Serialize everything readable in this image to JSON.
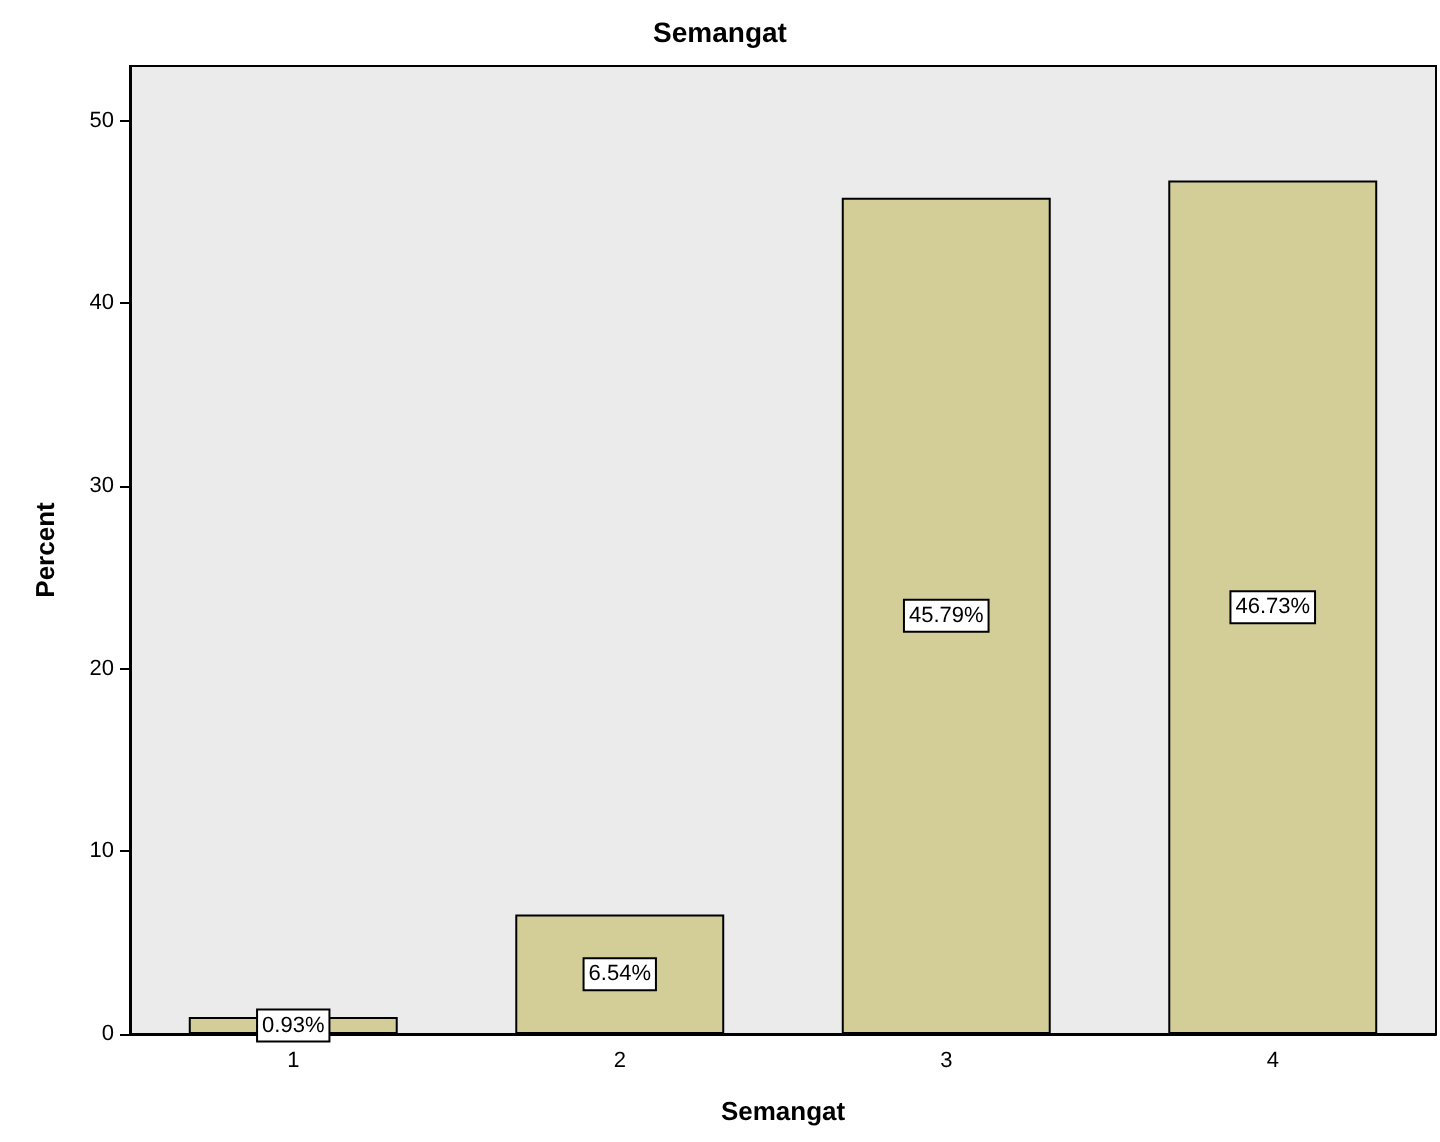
{
  "chart_data": {
    "type": "bar",
    "title": "Semangat",
    "xlabel": "Semangat",
    "ylabel": "Percent",
    "categories": [
      "1",
      "2",
      "3",
      "4"
    ],
    "values": [
      0.93,
      6.54,
      45.79,
      46.73
    ],
    "value_labels": [
      "0.93%",
      "6.54%",
      "45.79%",
      "46.73%"
    ],
    "color": "#d3ce97",
    "ylim": [
      0,
      53
    ],
    "yticks": [
      0,
      10,
      20,
      30,
      40,
      50
    ],
    "grid": false
  }
}
